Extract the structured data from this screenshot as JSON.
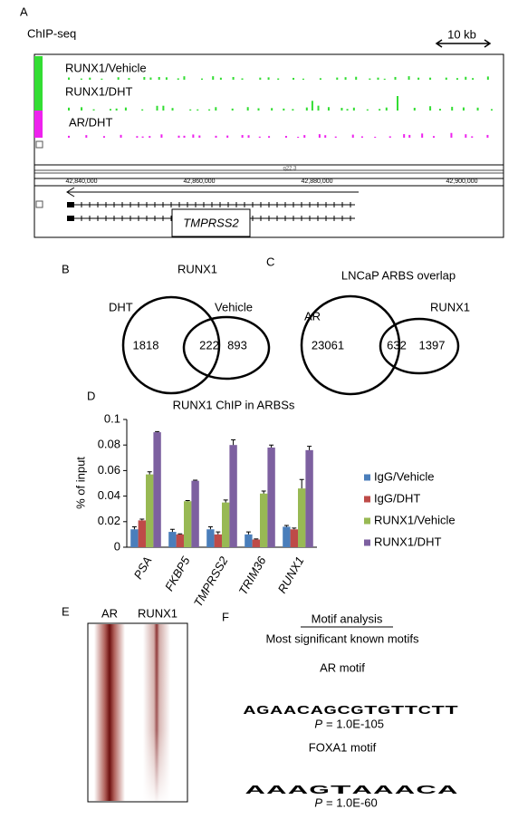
{
  "panel_a": {
    "label": "A",
    "title": "ChIP-seq",
    "scale": "10 kb",
    "tracks": [
      "RUNX1/Vehicle",
      "RUNX1/DHT",
      "AR/DHT"
    ],
    "band": "q22.3",
    "coordinates": [
      "42,840,000",
      "42,860,000",
      "42,880,000",
      "42,900,000"
    ],
    "gene": "TMPRSS2"
  },
  "panel_b": {
    "label": "B",
    "title": "RUNX1",
    "sets": [
      "DHT",
      "Vehicle"
    ],
    "counts": [
      "1818",
      "222",
      "893"
    ]
  },
  "panel_c": {
    "label": "C",
    "title": "LNCaP ARBS overlap",
    "sets": [
      "AR",
      "RUNX1"
    ],
    "counts": [
      "23061",
      "632",
      "1397"
    ]
  },
  "chart_data": {
    "type": "bar",
    "label": "D",
    "title": "RUNX1  ChIP in ARBSs",
    "ylabel": "% of input",
    "categories": [
      "PSA",
      "FKBP5",
      "TMPRSS2",
      "TRIM36",
      "RUNX1"
    ],
    "series": [
      {
        "name": "IgG/Vehicle",
        "color": "#4a7ebb",
        "values": [
          0.014,
          0.012,
          0.014,
          0.01,
          0.016
        ],
        "errors": [
          0.002,
          0.002,
          0.002,
          0.002,
          0.001
        ]
      },
      {
        "name": "IgG/DHT",
        "color": "#be4b48",
        "values": [
          0.021,
          0.01,
          0.01,
          0.006,
          0.014
        ],
        "errors": [
          0.001,
          0.0005,
          0.002,
          0.0005,
          0.001
        ]
      },
      {
        "name": "RUNX1/Vehicle",
        "color": "#98b954",
        "values": [
          0.057,
          0.036,
          0.035,
          0.042,
          0.046
        ],
        "errors": [
          0.002,
          0.0005,
          0.002,
          0.002,
          0.007
        ]
      },
      {
        "name": "RUNX1/DHT",
        "color": "#7d60a0",
        "values": [
          0.09,
          0.052,
          0.08,
          0.078,
          0.076
        ],
        "errors": [
          0.0005,
          0.0005,
          0.004,
          0.002,
          0.003
        ]
      }
    ],
    "ylim": [
      0,
      0.1
    ],
    "yticks": [
      0,
      0.02,
      0.04,
      0.06,
      0.08,
      0.1
    ],
    "grid": false,
    "legend": "right"
  },
  "panel_e": {
    "label": "E",
    "columns": [
      "AR",
      "RUNX1"
    ]
  },
  "panel_f": {
    "label": "F",
    "title": "Motif analysis",
    "subtitle": "Most significant known motifs",
    "motifs": [
      {
        "name": "AR motif",
        "logo": [
          "A",
          "G",
          "A",
          "A",
          "C",
          "A",
          "G",
          "C",
          "G",
          "T",
          "G",
          "T",
          "T",
          "C",
          "T",
          "T"
        ],
        "p": "P",
        "p_value": "= 1.0E-105"
      },
      {
        "name": "FOXA1 motif",
        "logo": [
          "A",
          "A",
          "A",
          "G",
          "T",
          "A",
          "A",
          "A",
          "C",
          "A"
        ],
        "p": "P",
        "p_value": "= 1.0E-60"
      }
    ]
  }
}
